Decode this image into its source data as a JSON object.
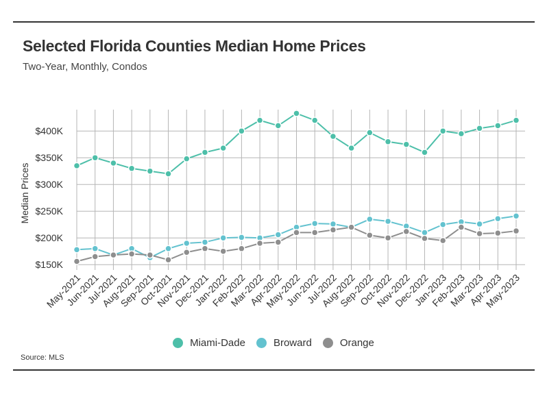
{
  "title": "Selected Florida Counties Median Home Prices",
  "subtitle": "Two-Year, Monthly, Condos",
  "source": "Source: MLS",
  "chart_data": {
    "type": "line",
    "ylabel": "Median Prices",
    "ylim": [
      140000,
      440000
    ],
    "yticks": [
      150000,
      200000,
      250000,
      300000,
      350000,
      400000
    ],
    "ytick_labels": [
      "$150K",
      "$200K",
      "$250K",
      "$300K",
      "$350K",
      "$400K"
    ],
    "grid": true,
    "legend_position": "bottom-center",
    "categories": [
      "May-2021",
      "Jun-2021",
      "Jul-2021",
      "Aug-2021",
      "Sep-2021",
      "Oct-2021",
      "Nov-2021",
      "Dec-2021",
      "Jan-2022",
      "Feb-2022",
      "Mar-2022",
      "Apr-2022",
      "May-2022",
      "Jun-2022",
      "Jul-2022",
      "Aug-2022",
      "Sep-2022",
      "Oct-2022",
      "Nov-2022",
      "Dec-2022",
      "Jan-2023",
      "Feb-2023",
      "Mar-2023",
      "Apr-2023",
      "May-2023"
    ],
    "series": [
      {
        "name": "Miami-Dade",
        "color": "#4dbfa9",
        "values": [
          335000,
          350000,
          340000,
          330000,
          325000,
          320000,
          348000,
          360000,
          368000,
          400000,
          420000,
          410000,
          433000,
          420000,
          390000,
          368000,
          397000,
          380000,
          375000,
          360000,
          400000,
          395000,
          405000,
          410000,
          420000
        ]
      },
      {
        "name": "Broward",
        "color": "#63c2cf",
        "values": [
          178000,
          180000,
          168000,
          180000,
          163000,
          180000,
          190000,
          192000,
          200000,
          201000,
          200000,
          206000,
          220000,
          227000,
          226000,
          220000,
          235000,
          231000,
          222000,
          210000,
          225000,
          230000,
          226000,
          236000,
          241000
        ]
      },
      {
        "name": "Orange",
        "color": "#8e8e8e",
        "values": [
          156000,
          165000,
          168000,
          170000,
          168000,
          159000,
          173000,
          180000,
          175000,
          180000,
          190000,
          192000,
          210000,
          210000,
          215000,
          220000,
          205000,
          200000,
          212000,
          199000,
          195000,
          220000,
          208000,
          209000,
          213000
        ]
      }
    ]
  }
}
